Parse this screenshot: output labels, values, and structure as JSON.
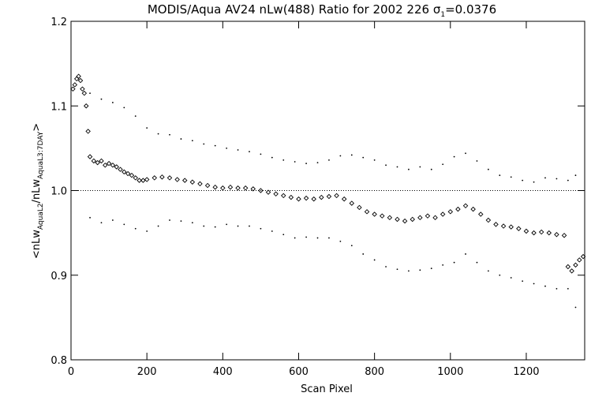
{
  "chart_data": {
    "type": "scatter",
    "title": {
      "main": "MODIS/Aqua AV24 nLw(488) Ratio for 2002 226 ",
      "sigma_symbol": "σ",
      "sigma_sub": "1",
      "sigma_value": "=0.0376"
    },
    "xlabel": "Scan Pixel",
    "ylabel": {
      "prefix": "<nLw",
      "sub1": "AquaL2",
      "mid": "/nLw",
      "sub2": "AquaL3:7DAY",
      "suffix": ">"
    },
    "xlim": [
      0,
      1354
    ],
    "ylim": [
      0.8,
      1.2
    ],
    "x_ticks": [
      0,
      200,
      400,
      600,
      800,
      1000,
      1200
    ],
    "y_ticks": [
      0.8,
      0.9,
      1.0,
      1.1,
      1.2
    ],
    "x_tick_labels": [
      "0",
      "200",
      "400",
      "600",
      "800",
      "1000",
      "1200"
    ],
    "y_tick_labels": [
      "0.8",
      "0.9",
      "1.0",
      "1.1",
      "1.2"
    ],
    "reference_line": 1.0,
    "grid": false,
    "series": [
      {
        "style": "diamond",
        "x": [
          5,
          10,
          15,
          20,
          25,
          30,
          35,
          40,
          45,
          50,
          60,
          70,
          80,
          90,
          100,
          110,
          120,
          130,
          140,
          150,
          160,
          170,
          180,
          190,
          200,
          220,
          240,
          260,
          280,
          300,
          320,
          340,
          360,
          380,
          400,
          420,
          440,
          460,
          480,
          500,
          520,
          540,
          560,
          580,
          600,
          620,
          640,
          660,
          680,
          700,
          720,
          740,
          760,
          780,
          800,
          820,
          840,
          860,
          880,
          900,
          920,
          940,
          960,
          980,
          1000,
          1020,
          1040,
          1060,
          1080,
          1100,
          1120,
          1140,
          1160,
          1180,
          1200,
          1220,
          1240,
          1260,
          1280,
          1300,
          1310,
          1320,
          1330,
          1340,
          1350
        ],
        "y": [
          1.12,
          1.125,
          1.132,
          1.135,
          1.13,
          1.12,
          1.115,
          1.1,
          1.07,
          1.04,
          1.035,
          1.033,
          1.035,
          1.03,
          1.032,
          1.03,
          1.028,
          1.025,
          1.022,
          1.02,
          1.018,
          1.015,
          1.012,
          1.012,
          1.013,
          1.015,
          1.016,
          1.015,
          1.013,
          1.012,
          1.01,
          1.008,
          1.006,
          1.004,
          1.003,
          1.004,
          1.003,
          1.003,
          1.002,
          1.0,
          0.998,
          0.996,
          0.994,
          0.992,
          0.99,
          0.991,
          0.99,
          0.992,
          0.993,
          0.994,
          0.99,
          0.985,
          0.98,
          0.975,
          0.972,
          0.97,
          0.968,
          0.966,
          0.964,
          0.966,
          0.968,
          0.97,
          0.968,
          0.972,
          0.975,
          0.978,
          0.982,
          0.978,
          0.972,
          0.965,
          0.96,
          0.958,
          0.957,
          0.955,
          0.952,
          0.95,
          0.951,
          0.95,
          0.948,
          0.947,
          0.91,
          0.905,
          0.912,
          0.918,
          0.922
        ]
      },
      {
        "style": "dot",
        "x": [
          50,
          80,
          110,
          140,
          170,
          200,
          230,
          260,
          290,
          320,
          350,
          380,
          410,
          440,
          470,
          500,
          530,
          560,
          590,
          620,
          650,
          680,
          710,
          740,
          770,
          800,
          830,
          860,
          890,
          920,
          950,
          980,
          1010,
          1040,
          1070,
          1100,
          1130,
          1160,
          1190,
          1220,
          1250,
          1280,
          1310,
          1330
        ],
        "y": [
          1.115,
          1.108,
          1.104,
          1.098,
          1.088,
          1.074,
          1.067,
          1.066,
          1.061,
          1.059,
          1.055,
          1.053,
          1.05,
          1.048,
          1.046,
          1.043,
          1.039,
          1.036,
          1.034,
          1.032,
          1.033,
          1.036,
          1.041,
          1.042,
          1.039,
          1.036,
          1.03,
          1.028,
          1.025,
          1.028,
          1.025,
          1.031,
          1.04,
          1.044,
          1.035,
          1.025,
          1.018,
          1.016,
          1.012,
          1.01,
          1.015,
          1.014,
          1.012,
          1.018
        ]
      },
      {
        "style": "dot",
        "x": [
          50,
          80,
          110,
          140,
          170,
          200,
          230,
          260,
          290,
          320,
          350,
          380,
          410,
          440,
          470,
          500,
          530,
          560,
          590,
          620,
          650,
          680,
          710,
          740,
          770,
          800,
          830,
          860,
          890,
          920,
          950,
          980,
          1010,
          1040,
          1070,
          1100,
          1130,
          1160,
          1190,
          1220,
          1250,
          1280,
          1310,
          1330
        ],
        "y": [
          0.968,
          0.962,
          0.965,
          0.96,
          0.955,
          0.952,
          0.958,
          0.965,
          0.964,
          0.962,
          0.958,
          0.957,
          0.96,
          0.958,
          0.958,
          0.955,
          0.952,
          0.948,
          0.944,
          0.945,
          0.944,
          0.944,
          0.94,
          0.935,
          0.925,
          0.918,
          0.91,
          0.907,
          0.905,
          0.906,
          0.908,
          0.912,
          0.915,
          0.925,
          0.915,
          0.905,
          0.9,
          0.897,
          0.893,
          0.89,
          0.887,
          0.884,
          0.884,
          0.862
        ]
      }
    ]
  }
}
